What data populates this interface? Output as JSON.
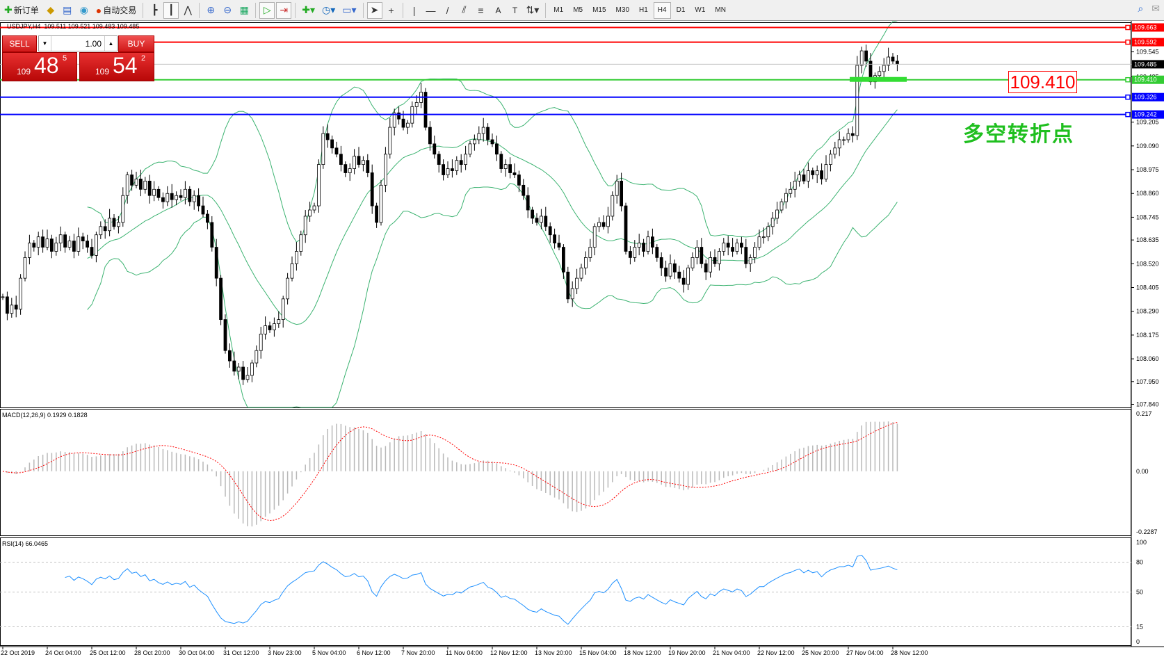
{
  "toolbar": {
    "items": [
      {
        "icon": "new-order-icon",
        "label": "新订单"
      },
      {
        "icon": "market-watch-icon",
        "label": ""
      },
      {
        "icon": "navigator-icon",
        "label": ""
      },
      {
        "icon": "signals-icon",
        "label": ""
      },
      {
        "icon": "autotrading-icon",
        "label": "自动交易"
      },
      {
        "icon": "bar-chart-icon",
        "label": ""
      },
      {
        "icon": "candlestick-icon",
        "label": "",
        "active": true
      },
      {
        "icon": "line-chart-icon",
        "label": ""
      },
      {
        "icon": "zoom-in-icon",
        "label": ""
      },
      {
        "icon": "zoom-out-icon",
        "label": ""
      },
      {
        "icon": "tile-windows-icon",
        "label": ""
      },
      {
        "icon": "autoscroll-icon",
        "label": "",
        "active": true
      },
      {
        "icon": "chart-shift-icon",
        "label": "",
        "active": true
      },
      {
        "icon": "indicators-icon",
        "label": ""
      },
      {
        "icon": "periods-clock-icon",
        "label": ""
      },
      {
        "icon": "templates-icon",
        "label": ""
      },
      {
        "icon": "cursor-icon",
        "label": "",
        "active": true
      },
      {
        "icon": "crosshair-icon",
        "label": ""
      },
      {
        "icon": "vertical-line-icon",
        "label": ""
      },
      {
        "icon": "horizontal-line-icon",
        "label": ""
      },
      {
        "icon": "trendline-icon",
        "label": ""
      },
      {
        "icon": "equidistant-channel-icon",
        "label": ""
      },
      {
        "icon": "fibonacci-icon",
        "label": ""
      },
      {
        "icon": "text-icon",
        "label": "A"
      },
      {
        "icon": "text-label-icon",
        "label": "T"
      },
      {
        "icon": "arrows-icon",
        "label": ""
      }
    ],
    "timeframes": [
      "M1",
      "M5",
      "M15",
      "M30",
      "H1",
      "H4",
      "D1",
      "W1",
      "MN"
    ],
    "active_timeframe": "H4"
  },
  "chart": {
    "title": "USDJPY,H4  109.511 109.521 109.483 109.485",
    "sell_label": "SELL",
    "buy_label": "BUY",
    "lot": "1.00",
    "sell_price": {
      "prefix": "109",
      "big": "48",
      "sup": "5"
    },
    "buy_price": {
      "prefix": "109",
      "big": "54",
      "sup": "2"
    },
    "annotation_price": "109.410",
    "annotation_text": "多空转折点",
    "colors": {
      "red": "#ff0000",
      "green": "#33cc33",
      "blue": "#0000ff",
      "band": "#3cb371",
      "rsi": "#1e90ff"
    }
  },
  "chart_data": {
    "type": "candlestick",
    "symbol": "USDJPY",
    "timeframe": "H4",
    "ylim": [
      107.84,
      109.663
    ],
    "price_ticks": [
      "109.545",
      "109.425",
      "109.205",
      "109.090",
      "108.975",
      "108.860",
      "108.745",
      "108.635",
      "108.520",
      "108.405",
      "108.290",
      "108.175",
      "108.060",
      "107.950",
      "107.840"
    ],
    "hlines": [
      {
        "price": "109.663",
        "color": "#ff0000"
      },
      {
        "price": "109.592",
        "color": "#ff0000"
      },
      {
        "price": "109.485",
        "color": "#000000",
        "current": true
      },
      {
        "price": "109.410",
        "color": "#33cc33"
      },
      {
        "price": "109.326",
        "color": "#0000ff"
      },
      {
        "price": "109.242",
        "color": "#0000ff"
      }
    ],
    "time_labels": [
      "22 Oct 2019",
      "24 Oct 04:00",
      "25 Oct 12:00",
      "28 Oct 20:00",
      "30 Oct 04:00",
      "31 Oct 12:00",
      "3 Nov 23:00",
      "5 Nov 04:00",
      "6 Nov 12:00",
      "7 Nov 20:00",
      "11 Nov 04:00",
      "12 Nov 12:00",
      "13 Nov 20:00",
      "15 Nov 04:00",
      "18 Nov 12:00",
      "19 Nov 20:00",
      "21 Nov 04:00",
      "22 Nov 12:00",
      "25 Nov 20:00",
      "27 Nov 04:00",
      "28 Nov 12:00"
    ],
    "closes": [
      108.36,
      108.28,
      108.32,
      108.3,
      108.45,
      108.55,
      108.62,
      108.6,
      108.65,
      108.6,
      108.64,
      108.58,
      108.62,
      108.66,
      108.6,
      108.63,
      108.58,
      108.65,
      108.63,
      108.6,
      108.56,
      108.66,
      108.7,
      108.68,
      108.74,
      108.7,
      108.72,
      108.85,
      108.95,
      108.9,
      108.93,
      108.88,
      108.92,
      108.85,
      108.88,
      108.84,
      108.82,
      108.86,
      108.83,
      108.85,
      108.84,
      108.88,
      108.82,
      108.85,
      108.8,
      108.76,
      108.72,
      108.6,
      108.45,
      108.25,
      108.1,
      108.05,
      108.0,
      108.02,
      107.96,
      107.98,
      108.04,
      108.1,
      108.18,
      108.22,
      108.2,
      108.23,
      108.25,
      108.35,
      108.45,
      108.52,
      108.58,
      108.66,
      108.75,
      108.78,
      108.8,
      109.0,
      109.15,
      109.12,
      109.08,
      109.05,
      109.0,
      108.96,
      108.98,
      109.04,
      109.0,
      109.02,
      108.96,
      108.8,
      108.72,
      108.9,
      109.05,
      109.18,
      109.25,
      109.22,
      109.18,
      109.2,
      109.28,
      109.3,
      109.35,
      109.18,
      109.1,
      109.05,
      109.0,
      108.95,
      108.98,
      108.97,
      109.02,
      109.0,
      109.05,
      109.1,
      109.12,
      109.15,
      109.18,
      109.12,
      109.1,
      109.05,
      108.98,
      109.0,
      108.96,
      108.95,
      108.9,
      108.85,
      108.78,
      108.74,
      108.72,
      108.75,
      108.7,
      108.66,
      108.62,
      108.6,
      108.48,
      108.35,
      108.4,
      108.45,
      108.5,
      108.55,
      108.6,
      108.7,
      108.72,
      108.7,
      108.75,
      108.85,
      108.92,
      108.8,
      108.58,
      108.55,
      108.6,
      108.62,
      108.58,
      108.65,
      108.6,
      108.55,
      108.5,
      108.46,
      108.52,
      108.48,
      108.45,
      108.42,
      108.5,
      108.55,
      108.6,
      108.52,
      108.48,
      108.55,
      108.52,
      108.58,
      108.62,
      108.6,
      108.58,
      108.62,
      108.6,
      108.52,
      108.55,
      108.6,
      108.65,
      108.65,
      108.7,
      108.74,
      108.78,
      108.82,
      108.86,
      108.88,
      108.92,
      108.95,
      108.92,
      108.97,
      108.95,
      108.97,
      108.93,
      109.0,
      109.05,
      109.08,
      109.12,
      109.12,
      109.15,
      109.14,
      109.48,
      109.55,
      109.5,
      109.4,
      109.43,
      109.45,
      109.48,
      109.52,
      109.5,
      109.485
    ],
    "indicators": {
      "bollinger": {
        "period": 20,
        "deviation": 2
      },
      "macd": {
        "label": "MACD(12,26,9) 0.1929 0.1828",
        "ticks": [
          "0.217",
          "0.00",
          "-0.2287"
        ],
        "ylim": [
          -0.2287,
          0.217
        ]
      },
      "rsi": {
        "label": "RSI(14) 66.0465",
        "ticks": [
          "100",
          "80",
          "50",
          "15",
          "0"
        ],
        "levels": [
          80,
          50,
          15
        ]
      }
    }
  }
}
